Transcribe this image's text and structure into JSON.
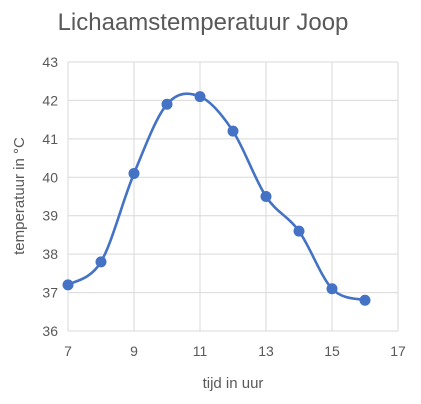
{
  "chart_data": {
    "type": "line",
    "title": "Lichaamstemperatuur Joop",
    "xlabel": "tijd in uur",
    "ylabel": "temperatuur in °C",
    "xlim": [
      7,
      17
    ],
    "ylim": [
      36,
      43
    ],
    "xticks": [
      7,
      9,
      11,
      13,
      15,
      17
    ],
    "xtick_labels": [
      "7",
      "9",
      "11",
      "13",
      "15",
      "17"
    ],
    "yticks": [
      36,
      37,
      38,
      39,
      40,
      41,
      42,
      43
    ],
    "ytick_labels": [
      "36",
      "37",
      "38",
      "39",
      "40",
      "41",
      "42",
      "43"
    ],
    "grid": true,
    "smooth": true,
    "series": [
      {
        "x": [
          7,
          8,
          9,
          10,
          11,
          12,
          13,
          14,
          15,
          16
        ],
        "y": [
          37.2,
          37.8,
          40.1,
          41.9,
          42.1,
          41.2,
          39.5,
          38.6,
          37.1,
          36.8
        ],
        "color": "#4472c4",
        "marker": "circle"
      }
    ],
    "colors": {
      "grid": "#d9d9d9",
      "text": "#595959",
      "series": "#4472c4"
    }
  }
}
